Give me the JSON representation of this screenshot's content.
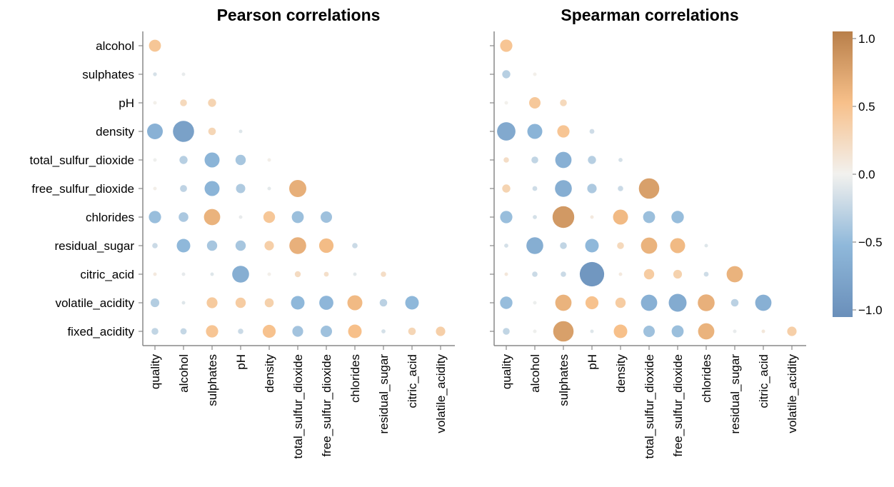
{
  "chart_data": [
    {
      "type": "scatter",
      "title": "Pearson correlations",
      "x_categories": [
        "quality",
        "alcohol",
        "sulphates",
        "pH",
        "density",
        "total_sulfur_dioxide",
        "free_sulfur_dioxide",
        "chlorides",
        "residual_sugar",
        "citric_acid",
        "volatile_acidity"
      ],
      "y_categories": [
        "alcohol",
        "sulphates",
        "pH",
        "density",
        "total_sulfur_dioxide",
        "free_sulfur_dioxide",
        "chlorides",
        "residual_sugar",
        "citric_acid",
        "volatile_acidity",
        "fixed_acidity"
      ],
      "grid": false,
      "values": [
        [
          0.44
        ],
        [
          -0.14,
          -0.05
        ],
        [
          0.02,
          0.25,
          0.3
        ],
        [
          -0.58,
          -0.78,
          0.28,
          -0.1
        ],
        [
          -0.02,
          -0.3,
          -0.55,
          -0.38,
          0.03
        ],
        [
          0.03,
          -0.26,
          -0.55,
          -0.34,
          -0.07,
          0.63
        ],
        [
          -0.45,
          -0.36,
          0.6,
          -0.05,
          0.43,
          -0.44,
          -0.42
        ],
        [
          -0.2,
          -0.5,
          -0.38,
          -0.38,
          0.35,
          0.62,
          0.53,
          -0.2
        ],
        [
          0.08,
          -0.06,
          -0.1,
          -0.62,
          0.02,
          0.22,
          0.18,
          -0.08,
          0.2
        ],
        [
          -0.32,
          -0.1,
          0.4,
          0.38,
          0.33,
          -0.5,
          -0.52,
          0.55,
          -0.28,
          -0.5
        ],
        [
          -0.25,
          -0.23,
          0.45,
          -0.2,
          0.48,
          -0.4,
          -0.42,
          0.5,
          -0.15,
          0.28,
          0.35
        ]
      ]
    },
    {
      "type": "scatter",
      "title": "Spearman correlations",
      "x_categories": [
        "quality",
        "alcohol",
        "sulphates",
        "pH",
        "density",
        "total_sulfur_dioxide",
        "free_sulfur_dioxide",
        "chlorides",
        "residual_sugar",
        "citric_acid",
        "volatile_acidity"
      ],
      "y_categories": [
        "alcohol",
        "sulphates",
        "pH",
        "density",
        "total_sulfur_dioxide",
        "free_sulfur_dioxide",
        "chlorides",
        "residual_sugar",
        "citric_acid",
        "volatile_acidity",
        "fixed_acidity"
      ],
      "grid": false,
      "values": [
        [
          0.45
        ],
        [
          -0.3,
          0.02
        ],
        [
          0.01,
          0.42,
          0.25
        ],
        [
          -0.68,
          -0.55,
          0.45,
          -0.18
        ],
        [
          0.2,
          -0.25,
          -0.6,
          -0.3,
          -0.15
        ],
        [
          0.3,
          -0.18,
          -0.62,
          -0.35,
          -0.2,
          0.75
        ],
        [
          -0.45,
          -0.15,
          0.8,
          0.08,
          0.55,
          -0.44,
          -0.46
        ],
        [
          -0.15,
          -0.62,
          -0.25,
          -0.5,
          0.25,
          0.6,
          0.55,
          -0.1
        ],
        [
          0.1,
          -0.2,
          -0.2,
          -0.9,
          0.08,
          0.38,
          0.32,
          -0.18,
          0.6
        ],
        [
          -0.46,
          -0.03,
          0.6,
          0.48,
          0.38,
          -0.6,
          -0.66,
          0.62,
          -0.28,
          -0.6
        ],
        [
          -0.25,
          -0.02,
          0.75,
          -0.1,
          0.5,
          -0.42,
          -0.44,
          0.6,
          -0.05,
          0.1,
          0.35
        ]
      ]
    }
  ],
  "legend": {
    "ticks": [
      1.0,
      0.5,
      0.0,
      -0.5,
      -1.0
    ],
    "tick_labels": [
      "1.0",
      "0.5",
      "0.0",
      "−0.5",
      "−1.0"
    ],
    "colors": {
      "neg_strong": "#6a8fba",
      "neg_mid": "#8fb8da",
      "neutral": "#f2f1ee",
      "pos_mid": "#f7c08a",
      "pos_strong": "#b87f4a"
    }
  }
}
